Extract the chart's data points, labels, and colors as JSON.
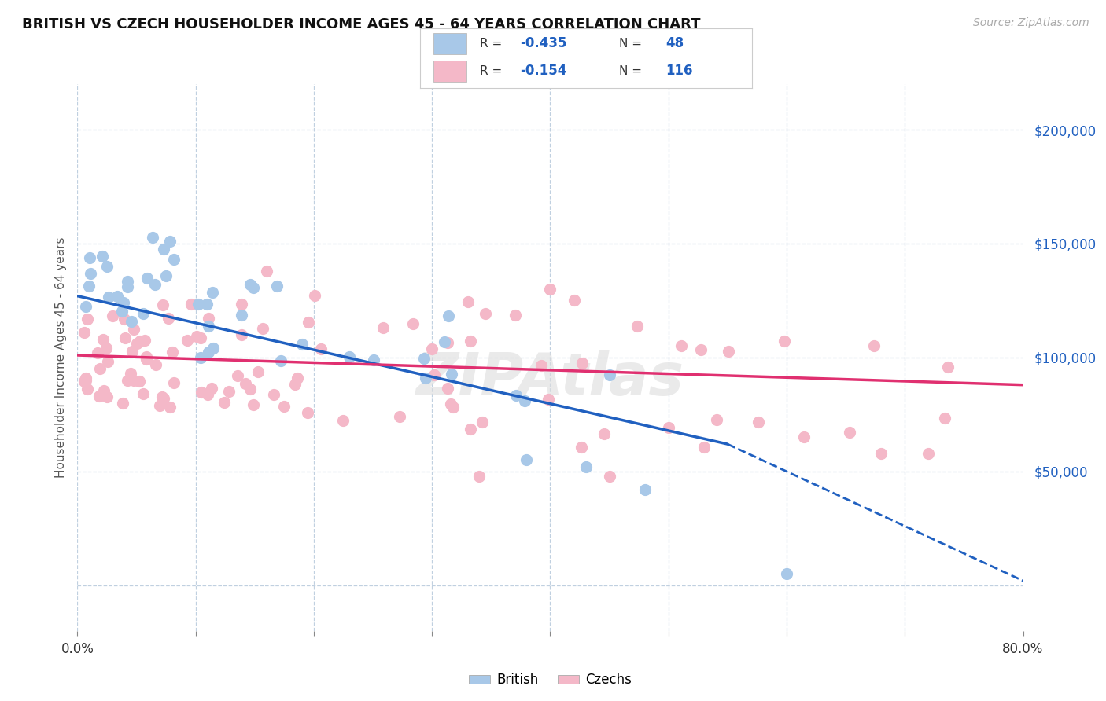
{
  "title": "BRITISH VS CZECH HOUSEHOLDER INCOME AGES 45 - 64 YEARS CORRELATION CHART",
  "source_text": "Source: ZipAtlas.com",
  "ylabel": "Householder Income Ages 45 - 64 years",
  "xlim": [
    0.0,
    0.8
  ],
  "ylim": [
    -20000,
    220000
  ],
  "yticks": [
    0,
    50000,
    100000,
    150000,
    200000
  ],
  "ytick_labels": [
    "",
    "$50,000",
    "$100,000",
    "$150,000",
    "$200,000"
  ],
  "british_color": "#a8c8e8",
  "czech_color": "#f4b8c8",
  "british_line_color": "#2060c0",
  "czech_line_color": "#e03070",
  "british_R": "-0.435",
  "british_N": "48",
  "czech_R": "-0.154",
  "czech_N": "116",
  "background_color": "#ffffff",
  "grid_color": "#c0d0e0",
  "legend_label_british": "British",
  "legend_label_czech": "Czechs",
  "blue_text_color": "#2060c0",
  "watermark_text": "ZIPAtlas",
  "title_fontsize": 13,
  "source_fontsize": 10,
  "ytick_fontsize": 12,
  "xtick_fontsize": 12,
  "ylabel_fontsize": 11,
  "legend_fontsize": 12
}
